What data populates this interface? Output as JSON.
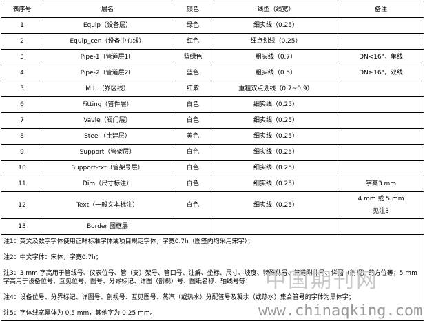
{
  "headers": [
    "表序号",
    "层名",
    "颜色",
    "线型（线宽）",
    "备注"
  ],
  "rows": [
    [
      "1",
      "Equip（设备层）",
      "绿色",
      "细实线（0.25）",
      ""
    ],
    [
      "2",
      "Equip_cen（设备中心线）",
      "红色",
      "细点划线（0.25）",
      ""
    ],
    [
      "3",
      "Pipe-1（管道层1）",
      "蓝绿色",
      "粗实线（0.7）",
      "DN<16\"，单线"
    ],
    [
      "4",
      "Pipe-2（管道层2）",
      "蓝色",
      "粗实线（0.5）",
      "DN≥16\"，双线"
    ],
    [
      "5",
      "M.L.（界区线）",
      "红紫",
      "重粗双点划线（0.7~0.9）",
      ""
    ],
    [
      "6",
      "Fitting（管件层）",
      "白色",
      "细实线（0.25）",
      ""
    ],
    [
      "7",
      "Vavle（阀门层）",
      "白色",
      "细实线（0.25）",
      ""
    ],
    [
      "8",
      "Steel（土建层）",
      "黄色",
      "细实线（0.25）",
      ""
    ],
    [
      "9",
      "Support（管架层）",
      "白色",
      "细实线（0.25）",
      ""
    ],
    [
      "10",
      "Support-txt（管架号层）",
      "白色",
      "细实线（0.25）",
      ""
    ],
    [
      "11",
      "Dim（尺寸标注）",
      "白色",
      "细实线（0.25）",
      "字高3 mm"
    ],
    [
      "12",
      "Text（一般文本标注）",
      "白色",
      "细实线（0.25）",
      "4 mm 或 5 mm"
    ],
    [
      "13",
      "Border 图框层",
      "",
      "",
      ""
    ]
  ],
  "row12_remark_line2": "见注3",
  "notes": [
    "注1：英文及数字字体使用正眸标准字体或项目规定字体，字宽0.7h（图签内均采用宋字）；",
    "注2：中文字体：宋体，字宽0.7h；",
    "注3：3 mm 字高用于管线号、仪表位号、管（支）架号、管口号、注解、坐标、尺寸、坡度、特殊件号、管道附件号、详图（剖视）的方位等；5 mm 字高用于设备位号、互见位号、图号、分界标记、详图（剖视）号、图纸名称、轴线号等；",
    "注4：设备位号、分界标记、详图号、剖视号、互见图号、蒸汽（或热水）分配管号及凝水（或热水）集合管号的字体为黑体字；",
    "注5：字体线宽黑体为 0.5 mm，其他字为 0.25 mm。"
  ],
  "watermark": {
    "cn": "中国期刊网",
    "url": "www.chinaqking.com"
  }
}
